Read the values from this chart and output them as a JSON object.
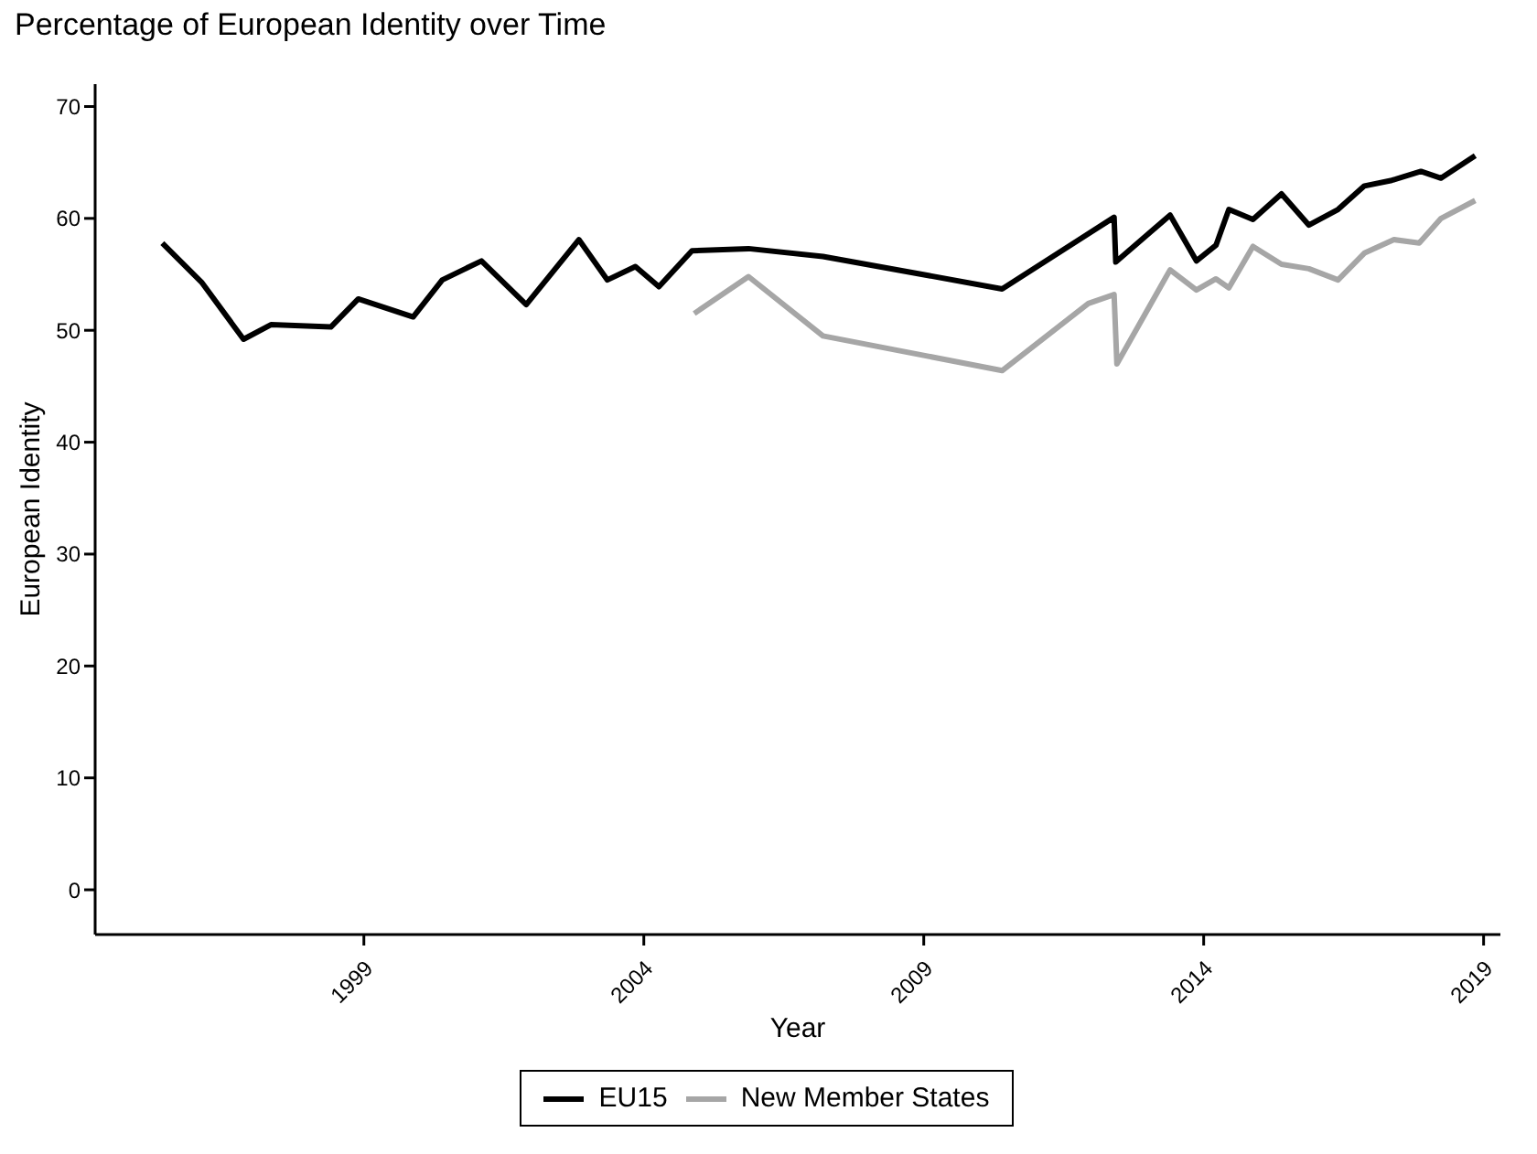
{
  "chart_data": {
    "type": "line",
    "title": "Percentage of European Identity over Time",
    "xlabel": "Year",
    "ylabel": "European Identity",
    "xlim": [
      1994.2,
      2019.3
    ],
    "xticks": [
      1999,
      2004,
      2009,
      2014,
      2019
    ],
    "ylim": [
      -4,
      72
    ],
    "yticks": [
      0,
      10,
      20,
      30,
      40,
      50,
      60,
      70
    ],
    "grid": false,
    "legend": "bottom",
    "marker": "none",
    "line_style": "solid",
    "series": [
      {
        "name": "EU15",
        "color": "#000000",
        "x": [
          1995.4,
          1996.1,
          1996.85,
          1997.34,
          1998.41,
          1998.9,
          1999.88,
          2000.4,
          2001.1,
          2001.9,
          2002.84,
          2003.35,
          2003.85,
          2004.27,
          2004.86,
          2005.87,
          2007.2,
          2010.4,
          2012.4,
          2012.43,
          2013.4,
          2013.87,
          2014.22,
          2014.45,
          2014.88,
          2015.39,
          2015.88,
          2016.4,
          2016.87,
          2017.36,
          2017.88,
          2018.24,
          2018.85
        ],
        "values": [
          57.8,
          54.3,
          49.2,
          50.5,
          50.3,
          52.8,
          51.2,
          54.5,
          56.2,
          52.3,
          58.1,
          54.5,
          55.7,
          53.9,
          57.1,
          57.3,
          56.6,
          53.7,
          60.1,
          56.1,
          60.3,
          56.2,
          57.6,
          60.8,
          59.9,
          62.2,
          59.4,
          60.8,
          62.9,
          63.4,
          64.2,
          63.6,
          65.6
        ]
      },
      {
        "name": "New Member States",
        "color": "#a6a6a6",
        "x": [
          2004.9,
          2005.87,
          2007.2,
          2010.4,
          2011.94,
          2012.4,
          2012.45,
          2013.4,
          2013.87,
          2014.22,
          2014.45,
          2014.88,
          2015.39,
          2015.88,
          2016.4,
          2016.87,
          2017.4,
          2017.85,
          2018.24,
          2018.85
        ],
        "values": [
          51.5,
          54.8,
          49.5,
          46.4,
          52.4,
          53.2,
          47.0,
          55.4,
          53.6,
          54.6,
          53.8,
          57.5,
          55.9,
          55.5,
          54.5,
          56.9,
          58.1,
          57.8,
          60.0,
          61.6
        ]
      }
    ]
  }
}
